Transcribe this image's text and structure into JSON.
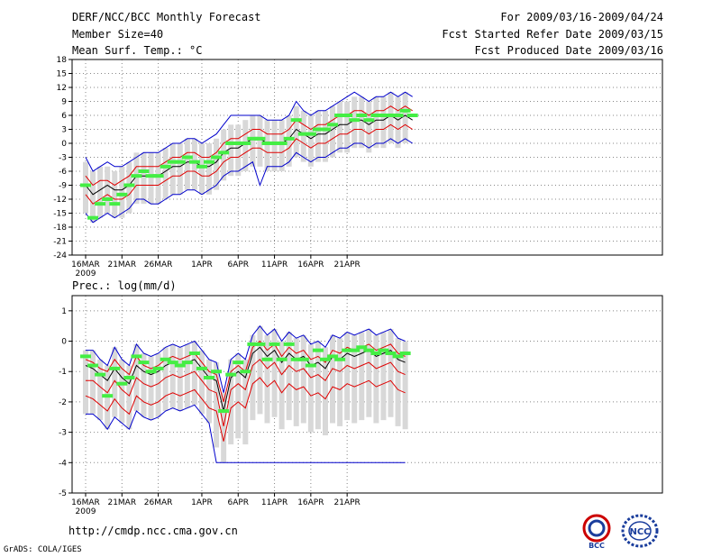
{
  "header": {
    "title": "DERF/NCC/BCC Monthly Forecast",
    "member_size": "Member Size=40",
    "variable": "Mean Surf. Temp.: °C",
    "period": "For 2009/03/16-2009/04/24",
    "started": "Fcst Started Refer Date 2009/03/15",
    "produced": "Fcst Produced Date 2009/03/16"
  },
  "footer": {
    "url": "http://cmdp.ncc.cma.gov.cn",
    "credit": "GrADS: COLA/IGES",
    "bcc_logo": "BCC",
    "ncc_logo": "NCC"
  },
  "colors": {
    "ensemble_mean": "#000000",
    "spread": "#e00000",
    "envelope": "#0000cc",
    "member_box": "#d8d8d8",
    "observed": "#44ee44",
    "grid": "#888888"
  },
  "chart_data": [
    {
      "type": "line",
      "title": "Mean Surf. Temp.: °C",
      "ylim": [
        -24,
        18
      ],
      "yticks": [
        -24,
        -21,
        -18,
        -15,
        -12,
        -9,
        -6,
        -3,
        0,
        3,
        6,
        9,
        12,
        15,
        18
      ],
      "xlabels": [
        "16MAR",
        "21MAR",
        "26MAR",
        "1APR",
        "6APR",
        "11APR",
        "16APR",
        "21APR"
      ],
      "xyear": "2009",
      "series": [
        {
          "name": "mean",
          "values": [
            -9,
            -11,
            -10,
            -9,
            -10,
            -10,
            -9,
            -7,
            -7,
            -7,
            -7,
            -6,
            -5,
            -5,
            -4,
            -4,
            -5,
            -5,
            -4,
            -2,
            -1,
            -1,
            0,
            1,
            1,
            0,
            0,
            0,
            1,
            3,
            2,
            1,
            2,
            2,
            3,
            4,
            4,
            5,
            5,
            4,
            5,
            5,
            6,
            5,
            6,
            5
          ]
        },
        {
          "name": "upper",
          "values": [
            -7,
            -9,
            -8,
            -8,
            -9,
            -8,
            -7,
            -5,
            -5,
            -5,
            -5,
            -4,
            -3,
            -3,
            -2,
            -2,
            -3,
            -3,
            -2,
            0,
            1,
            1,
            2,
            3,
            3,
            2,
            2,
            2,
            3,
            5,
            4,
            3,
            4,
            4,
            5,
            6,
            6,
            7,
            7,
            6,
            7,
            7,
            8,
            7,
            8,
            7
          ]
        },
        {
          "name": "lower",
          "values": [
            -11,
            -13,
            -12,
            -11,
            -12,
            -12,
            -11,
            -9,
            -9,
            -9,
            -9,
            -8,
            -7,
            -7,
            -6,
            -6,
            -7,
            -7,
            -6,
            -4,
            -3,
            -3,
            -2,
            -1,
            -1,
            -2,
            -2,
            -2,
            -1,
            1,
            0,
            -1,
            0,
            0,
            1,
            2,
            2,
            3,
            3,
            2,
            3,
            3,
            4,
            3,
            4,
            3
          ]
        },
        {
          "name": "max",
          "values": [
            -3,
            -6,
            -5,
            -4,
            -5,
            -5,
            -4,
            -3,
            -2,
            -2,
            -2,
            -1,
            0,
            0,
            1,
            1,
            0,
            1,
            2,
            4,
            6,
            6,
            6,
            6,
            6,
            5,
            5,
            5,
            6,
            9,
            7,
            6,
            7,
            7,
            8,
            9,
            10,
            11,
            10,
            9,
            10,
            10,
            11,
            10,
            11,
            10
          ]
        },
        {
          "name": "min",
          "values": [
            -15,
            -17,
            -16,
            -15,
            -16,
            -15,
            -14,
            -12,
            -12,
            -13,
            -13,
            -12,
            -11,
            -11,
            -10,
            -10,
            -11,
            -10,
            -9,
            -7,
            -6,
            -6,
            -5,
            -4,
            -9,
            -5,
            -5,
            -5,
            -4,
            -2,
            -3,
            -4,
            -3,
            -3,
            -2,
            -1,
            -1,
            0,
            0,
            -1,
            0,
            0,
            1,
            0,
            1,
            0
          ]
        },
        {
          "name": "observed",
          "values": [
            -9,
            -16,
            -13,
            -12,
            -13,
            -11,
            -9,
            -7,
            -6,
            -7,
            -7,
            -5,
            -4,
            -4,
            -3,
            -4,
            -5,
            -4,
            -3,
            -2,
            0,
            0,
            0,
            1,
            1,
            0,
            0,
            0,
            1,
            5,
            2,
            2,
            3,
            3,
            4,
            6,
            6,
            5,
            6,
            5,
            6,
            6,
            6,
            6,
            7,
            6
          ]
        }
      ]
    },
    {
      "type": "line",
      "title": "Prec.: log(mm/d)",
      "ylim": [
        -5,
        1.5
      ],
      "yticks": [
        -5,
        -4,
        -3,
        -2,
        -1,
        0,
        1
      ],
      "xlabels": [
        "16MAR",
        "21MAR",
        "26MAR",
        "1APR",
        "6APR",
        "11APR",
        "16APR",
        "21APR"
      ],
      "xyear": "2009",
      "series": [
        {
          "name": "mean",
          "values": [
            -0.8,
            -0.9,
            -1.1,
            -1.3,
            -0.9,
            -1.2,
            -1.4,
            -0.8,
            -1.0,
            -1.1,
            -1.0,
            -0.8,
            -0.7,
            -0.8,
            -0.7,
            -0.6,
            -0.9,
            -1.2,
            -1.3,
            -2.3,
            -1.2,
            -1.0,
            -1.2,
            -0.4,
            -0.2,
            -0.5,
            -0.3,
            -0.7,
            -0.4,
            -0.6,
            -0.5,
            -0.8,
            -0.7,
            -0.9,
            -0.5,
            -0.6,
            -0.4,
            -0.5,
            -0.4,
            -0.3,
            -0.5,
            -0.4,
            -0.3,
            -0.6,
            -0.7
          ]
        },
        {
          "name": "upper",
          "values": [
            -0.6,
            -0.7,
            -0.9,
            -1.0,
            -0.6,
            -0.9,
            -1.1,
            -0.5,
            -0.8,
            -0.9,
            -0.8,
            -0.6,
            -0.5,
            -0.6,
            -0.5,
            -0.4,
            -0.7,
            -1.0,
            -1.1,
            -2.0,
            -1.0,
            -0.8,
            -1.0,
            -0.2,
            0.0,
            -0.3,
            -0.1,
            -0.5,
            -0.2,
            -0.4,
            -0.3,
            -0.6,
            -0.5,
            -0.7,
            -0.3,
            -0.4,
            -0.2,
            -0.3,
            -0.2,
            -0.1,
            -0.3,
            -0.2,
            -0.1,
            -0.4,
            -0.5
          ]
        },
        {
          "name": "lower",
          "values": [
            -1.3,
            -1.3,
            -1.5,
            -1.7,
            -1.3,
            -1.6,
            -1.8,
            -1.2,
            -1.4,
            -1.5,
            -1.4,
            -1.2,
            -1.1,
            -1.2,
            -1.1,
            -1.0,
            -1.3,
            -1.6,
            -1.7,
            -2.8,
            -1.6,
            -1.4,
            -1.6,
            -0.8,
            -0.6,
            -0.9,
            -0.7,
            -1.1,
            -0.8,
            -1.0,
            -0.9,
            -1.2,
            -1.1,
            -1.3,
            -0.9,
            -1.0,
            -0.8,
            -0.9,
            -0.8,
            -0.7,
            -0.9,
            -0.8,
            -0.7,
            -1.0,
            -1.1
          ]
        },
        {
          "name": "p10",
          "values": [
            -1.8,
            -1.9,
            -2.1,
            -2.3,
            -1.9,
            -2.2,
            -2.4,
            -1.8,
            -2.0,
            -2.1,
            -2.0,
            -1.8,
            -1.7,
            -1.8,
            -1.7,
            -1.6,
            -1.9,
            -2.2,
            -2.3,
            -3.3,
            -2.2,
            -2.0,
            -2.2,
            -1.4,
            -1.2,
            -1.5,
            -1.3,
            -1.7,
            -1.4,
            -1.6,
            -1.5,
            -1.8,
            -1.7,
            -1.9,
            -1.5,
            -1.6,
            -1.4,
            -1.5,
            -1.4,
            -1.3,
            -1.5,
            -1.4,
            -1.3,
            -1.6,
            -1.7
          ]
        },
        {
          "name": "max",
          "values": [
            -0.3,
            -0.3,
            -0.6,
            -0.8,
            -0.2,
            -0.6,
            -0.8,
            -0.1,
            -0.4,
            -0.5,
            -0.4,
            -0.2,
            -0.1,
            -0.2,
            -0.1,
            0.0,
            -0.3,
            -0.6,
            -0.7,
            -1.7,
            -0.6,
            -0.4,
            -0.6,
            0.2,
            0.5,
            0.2,
            0.4,
            0.0,
            0.3,
            0.1,
            0.2,
            -0.1,
            0.0,
            -0.2,
            0.2,
            0.1,
            0.3,
            0.2,
            0.3,
            0.4,
            0.2,
            0.3,
            0.4,
            0.1,
            0.0
          ]
        },
        {
          "name": "min",
          "values": [
            -2.4,
            -2.4,
            -2.6,
            -2.9,
            -2.5,
            -2.7,
            -2.9,
            -2.3,
            -2.5,
            -2.6,
            -2.5,
            -2.3,
            -2.2,
            -2.3,
            -2.2,
            -2.1,
            -2.4,
            -2.7,
            -4.0,
            -4.0,
            -4.0,
            -4.0,
            -4.0,
            -4.0,
            -4.0,
            -4.0,
            -4.0,
            -4.0,
            -4.0,
            -4.0,
            -4.0,
            -4.0,
            -4.0,
            -4.0,
            -4.0,
            -4.0,
            -4.0,
            -4.0,
            -4.0,
            -4.0,
            -4.0,
            -4.0,
            -4.0,
            -4.0,
            -4.0
          ]
        },
        {
          "name": "observed",
          "values": [
            -0.5,
            -0.8,
            -1.1,
            -1.8,
            -0.9,
            -1.4,
            -1.2,
            -0.5,
            -0.7,
            -1.0,
            -0.9,
            -0.6,
            -0.7,
            -0.8,
            -0.7,
            -0.4,
            -0.9,
            -1.2,
            -1.0,
            -2.3,
            -1.1,
            -0.7,
            -1.0,
            -0.1,
            -0.1,
            -0.6,
            -0.1,
            -0.6,
            -0.1,
            -0.6,
            -0.6,
            -0.8,
            -0.3,
            -0.6,
            -0.5,
            -0.6,
            -0.3,
            -0.3,
            -0.2,
            -0.3,
            -0.4,
            -0.3,
            -0.4,
            -0.5,
            -0.4
          ]
        }
      ]
    }
  ]
}
